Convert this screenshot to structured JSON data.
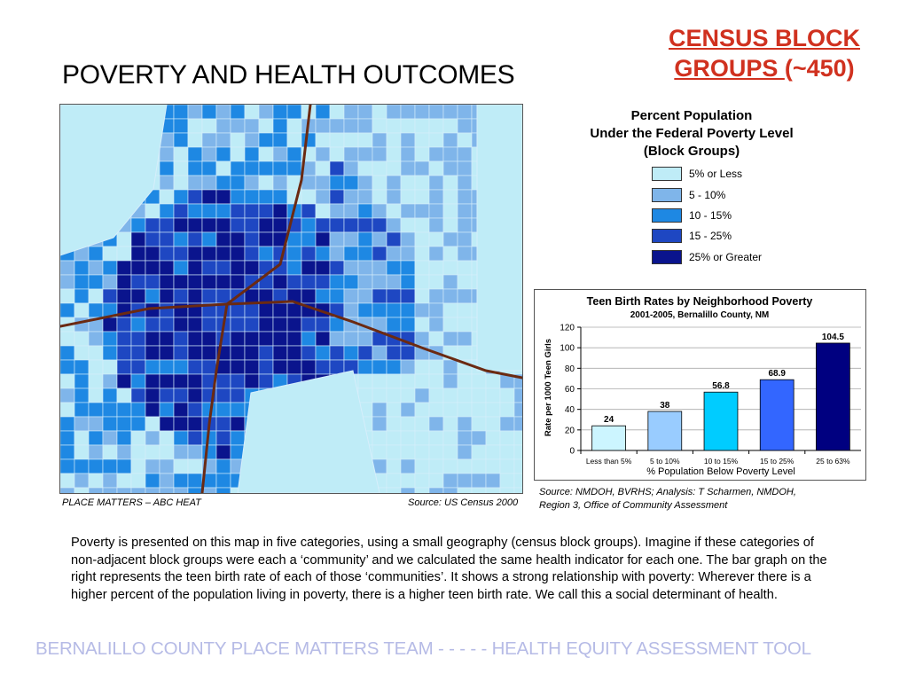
{
  "slide": {
    "title": "POVERTY AND HEALTH OUTCOMES",
    "census_title_underlined": "CENSUS BLOCK GROUPS ",
    "census_title_rest": "(~450)"
  },
  "map": {
    "caption_left": "PLACE MATTERS – ABC HEAT",
    "caption_source": "Source: US Census 2000"
  },
  "legend": {
    "title_line1": "Percent Population",
    "title_line2": "Under the Federal Poverty Level",
    "title_line3": "(Block Groups)",
    "items": [
      {
        "label": "5% or Less",
        "color": "#bfecf7"
      },
      {
        "label": "5 - 10%",
        "color": "#7fb5ea"
      },
      {
        "label": "10 - 15%",
        "color": "#1e88e3"
      },
      {
        "label": "15 - 25%",
        "color": "#1e47c2"
      },
      {
        "label": "25% or Greater",
        "color": "#0a148d"
      }
    ]
  },
  "chart_data": {
    "type": "bar",
    "title": "Teen Birth Rates by Neighborhood Poverty",
    "subtitle": "2001-2005, Bernalillo County, NM",
    "xlabel": "% Population Below Poverty Level",
    "ylabel": "Rate per 1000 Teen Girls",
    "ylim": [
      0,
      120
    ],
    "yticks": [
      0,
      20,
      40,
      60,
      80,
      100,
      120
    ],
    "categories": [
      "Less than 5%",
      "5 to 10%",
      "10 to 15%",
      "15 to 25%",
      "25 to 63%"
    ],
    "values": [
      24,
      38,
      56.8,
      68.9,
      104.5
    ],
    "value_labels": [
      "24",
      "38",
      "56.8",
      "68.9",
      "104.5"
    ],
    "bar_colors": [
      "#ccf5ff",
      "#99ccff",
      "#00ccff",
      "#3366ff",
      "#000080"
    ],
    "grid": true,
    "source_line1": "Source: NMDOH, BVRHS; Analysis: T Scharmen, NMDOH,",
    "source_line2": "Region 3, Office of Community Assessment"
  },
  "body_text": "Poverty is presented on this map in five categories, using a small geography (census block groups).  Imagine if these categories of non-adjacent block groups were each a ‘community’ and we calculated the same health indicator for each one.  The bar graph on the right represents the teen birth rate of each of those ‘communities’.  It shows a strong relationship with poverty: Wherever there is a higher percent of the population living in poverty, there is a higher teen birth rate.  We call this a social determinant of health.",
  "footer": "BERNALILLO COUNTY PLACE MATTERS TEAM  -  -  -  -  -  HEALTH EQUITY ASSESSMENT TOOL"
}
